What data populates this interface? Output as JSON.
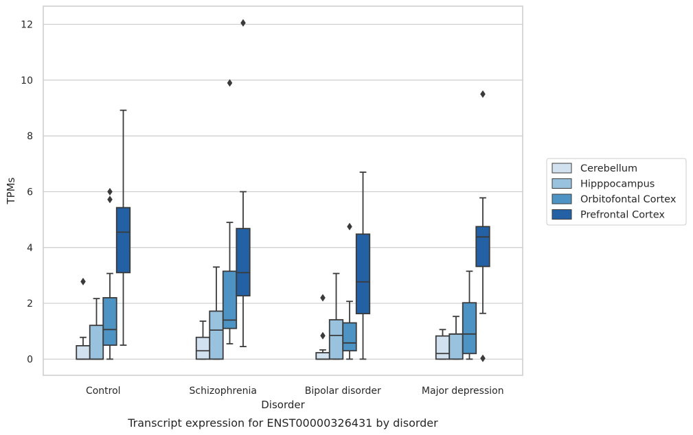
{
  "chart_data": {
    "type": "box",
    "caption": "Transcript expression for ENST00000326431 by disorder",
    "xlabel": "Disorder",
    "ylabel": "TPMs",
    "ylim": [
      -0.58,
      12.65
    ],
    "yticks": [
      0,
      2,
      4,
      6,
      8,
      10,
      12
    ],
    "grid": "horizontal",
    "legend_position": "right",
    "categories": [
      "Control",
      "Schizophrenia",
      "Bipolar disorder",
      "Major depression"
    ],
    "series": [
      {
        "name": "Cerebellum",
        "color": "#d1e1ef",
        "boxes": [
          {
            "min": 0,
            "q1": 0,
            "median": 0,
            "q3": 0.48,
            "max": 0.78,
            "outliers": [
              2.78
            ]
          },
          {
            "min": 0,
            "q1": 0,
            "median": 0.3,
            "q3": 0.78,
            "max": 1.36,
            "outliers": []
          },
          {
            "min": 0,
            "q1": 0,
            "median": 0,
            "q3": 0.23,
            "max": 0.33,
            "outliers": [
              0.84,
              2.2
            ]
          },
          {
            "min": 0,
            "q1": 0,
            "median": 0.2,
            "q3": 0.83,
            "max": 1.06,
            "outliers": []
          }
        ]
      },
      {
        "name": "Hipppocampus",
        "color": "#99c2de",
        "boxes": [
          {
            "min": 0,
            "q1": 0,
            "median": 0,
            "q3": 1.21,
            "max": 2.17,
            "outliers": []
          },
          {
            "min": 0,
            "q1": 0,
            "median": 1.04,
            "q3": 1.72,
            "max": 3.3,
            "outliers": []
          },
          {
            "min": 0,
            "q1": 0,
            "median": 0.85,
            "q3": 1.41,
            "max": 3.07,
            "outliers": []
          },
          {
            "min": 0,
            "q1": 0,
            "median": 0.9,
            "q3": 0.9,
            "max": 1.53,
            "outliers": []
          }
        ]
      },
      {
        "name": "Orbitofontal Cortex",
        "color": "#4d93c4",
        "boxes": [
          {
            "min": 0,
            "q1": 0.5,
            "median": 1.06,
            "q3": 2.2,
            "max": 3.07,
            "outliers": [
              5.72,
              6.0
            ]
          },
          {
            "min": 0.55,
            "q1": 1.1,
            "median": 1.4,
            "q3": 3.15,
            "max": 4.9,
            "outliers": [
              9.9
            ]
          },
          {
            "min": 0,
            "q1": 0.3,
            "median": 0.58,
            "q3": 1.3,
            "max": 2.07,
            "outliers": [
              4.75
            ]
          },
          {
            "min": 0,
            "q1": 0.2,
            "median": 0.9,
            "q3": 2.02,
            "max": 3.15,
            "outliers": []
          }
        ]
      },
      {
        "name": "Prefrontal Cortex",
        "color": "#2461a4",
        "boxes": [
          {
            "min": 0.5,
            "q1": 3.1,
            "median": 4.55,
            "q3": 5.43,
            "max": 8.92,
            "outliers": []
          },
          {
            "min": 0.45,
            "q1": 2.27,
            "median": 3.1,
            "q3": 4.68,
            "max": 6.0,
            "outliers": [
              12.05
            ]
          },
          {
            "min": 0,
            "q1": 1.63,
            "median": 2.77,
            "q3": 4.48,
            "max": 6.7,
            "outliers": []
          },
          {
            "min": 1.64,
            "q1": 3.32,
            "median": 4.38,
            "q3": 4.75,
            "max": 5.78,
            "outliers": [
              0.03,
              9.5
            ]
          }
        ]
      }
    ]
  }
}
